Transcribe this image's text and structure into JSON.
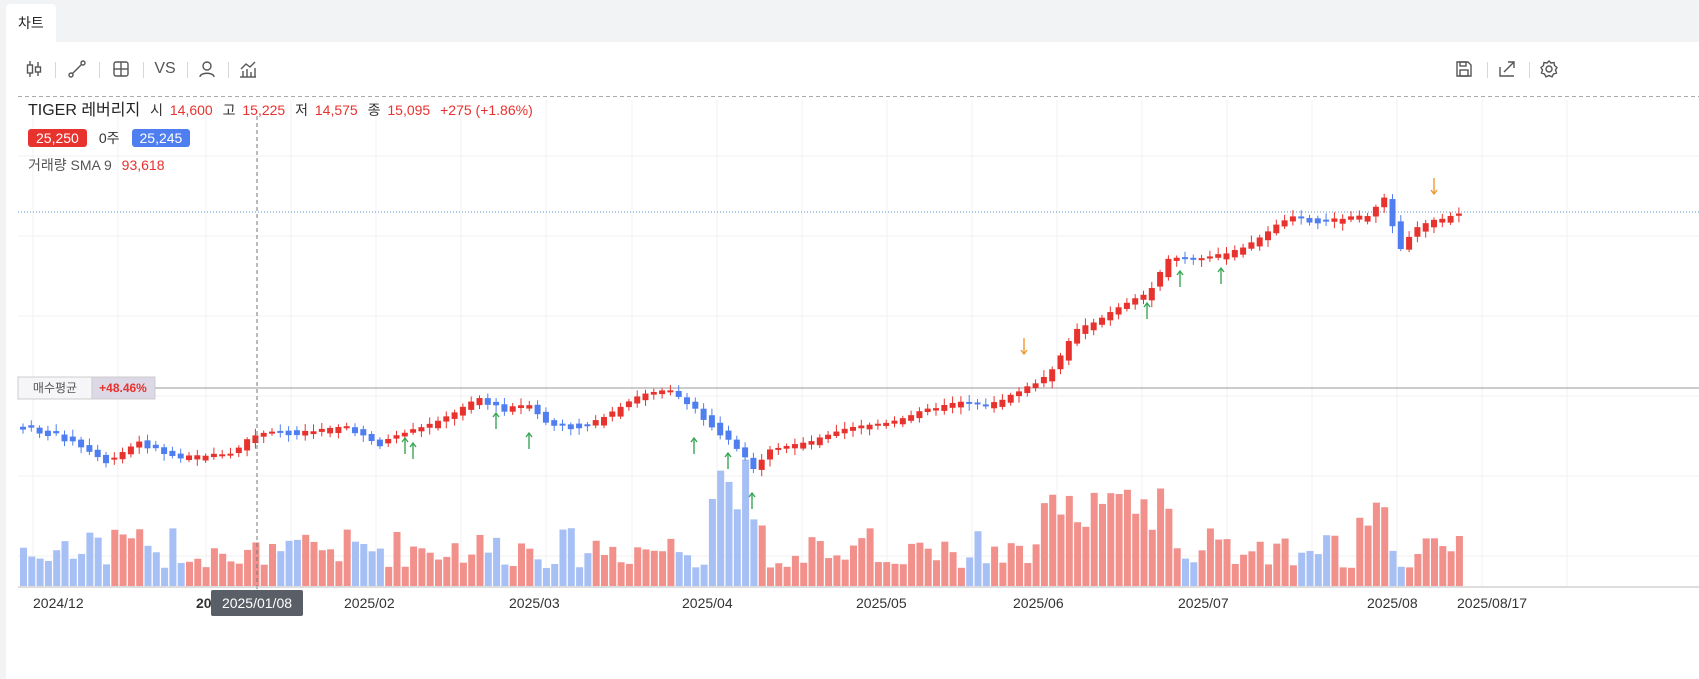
{
  "tab": {
    "label": "차트"
  },
  "toolbar": {
    "left_icons": [
      "candlestick-icon",
      "draw-line-icon",
      "layout-grid-icon",
      "compare-icon",
      "person-icon",
      "indicator-chart-icon"
    ],
    "compare_label": "VS",
    "right_icons": [
      "save-icon",
      "export-icon",
      "settings-icon"
    ]
  },
  "legend": {
    "symbol": "TIGER 레버리지",
    "open_label": "시",
    "open": "14,600",
    "high_label": "고",
    "high": "15,225",
    "low_label": "저",
    "low": "14,575",
    "close_label": "종",
    "close": "15,095",
    "change": "+275 (+1.86%)",
    "ask_price": "25,250",
    "quantity": "0주",
    "bid_price": "25,245",
    "volume_label": "거래량 SMA 9",
    "volume_value": "93,618"
  },
  "avg_line": {
    "label": "매수평균",
    "value": "+48.46%"
  },
  "crosshair": {
    "date": "2025/01/08"
  },
  "x_axis": {
    "labels": [
      "2024/12",
      "20",
      "2025/02",
      "2025/03",
      "2025/04",
      "2025/05",
      "2025/06",
      "2025/07",
      "2025/08",
      "2025/08/17"
    ]
  },
  "colors": {
    "up": "#e8322e",
    "down": "#4f7ef0",
    "up_vol": "#f2908c",
    "down_vol": "#a6bff4",
    "buy_marker": "#3aa655",
    "sell_marker": "#f0962e"
  },
  "chart_data": {
    "type": "candlestick",
    "x_labels": [
      "2024/12",
      "2025/01/08",
      "2025/02",
      "2025/03",
      "2025/04",
      "2025/05",
      "2025/06",
      "2025/07",
      "2025/08",
      "2025/08/17"
    ],
    "last_close": 15095,
    "avg_buy_change_pct": 48.46
  }
}
